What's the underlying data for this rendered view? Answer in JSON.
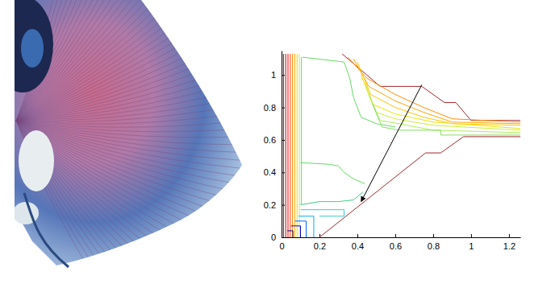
{
  "chart_data": {
    "type": "contour",
    "xlim": [
      0,
      1.26
    ],
    "ylim": [
      0,
      1.15
    ],
    "xticks": [
      0,
      0.2,
      0.4,
      0.6,
      0.8,
      1,
      1.2
    ],
    "yticks": [
      0,
      0.2,
      0.4,
      0.6,
      0.8,
      1
    ],
    "series": [
      {
        "color": "#a0282d",
        "x": [
          0.32,
          0.52,
          0.74,
          0.86,
          0.92,
          1.0,
          1.26
        ],
        "y": [
          1.13,
          0.93,
          0.93,
          0.83,
          0.83,
          0.72,
          0.72
        ]
      },
      {
        "color": "#a0282d",
        "x": [
          0.2,
          0.76,
          0.84,
          0.96,
          1.26
        ],
        "y": [
          0,
          0.52,
          0.52,
          0.62,
          0.62
        ]
      },
      {
        "color": "#7f0000",
        "x": [
          0.01,
          0.01
        ],
        "y": [
          0,
          1.13
        ]
      },
      {
        "color": "#bf0000",
        "x": [
          0.022,
          0.022
        ],
        "y": [
          0,
          1.13
        ]
      },
      {
        "color": "#ff0000",
        "x": [
          0.034,
          0.034
        ],
        "y": [
          0,
          1.13
        ]
      },
      {
        "color": "#ff4000",
        "x": [
          0.046,
          0.046
        ],
        "y": [
          0,
          1.13
        ]
      },
      {
        "color": "#ff8000",
        "x": [
          0.058,
          0.058
        ],
        "y": [
          0,
          1.13
        ]
      },
      {
        "color": "#ffaa00",
        "x": [
          0.07,
          0.07
        ],
        "y": [
          0,
          1.13
        ]
      },
      {
        "color": "#ffd200",
        "x": [
          0.082,
          0.082
        ],
        "y": [
          0,
          1.13
        ]
      },
      {
        "color": "#d4e04a",
        "x": [
          0.094,
          0.094
        ],
        "y": [
          0,
          1.13
        ]
      },
      {
        "color": "#66d966",
        "x": [
          0.105,
          0.105
        ],
        "y": [
          0.2,
          1.11
        ]
      },
      {
        "color": "#66d966",
        "x": [
          0.11,
          0.33,
          0.36,
          0.38,
          0.42,
          0.5,
          0.6
        ],
        "y": [
          1.11,
          1.08,
          0.98,
          0.86,
          0.74,
          0.7,
          0.68
        ]
      },
      {
        "color": "#66d966",
        "x": [
          0.1,
          0.25,
          0.3,
          0.33,
          0.38,
          0.44
        ],
        "y": [
          0.46,
          0.45,
          0.44,
          0.4,
          0.36,
          0.33
        ]
      },
      {
        "color": "#44cc88",
        "x": [
          0.1,
          0.2,
          0.3,
          0.38,
          0.4,
          0.43
        ],
        "y": [
          0.2,
          0.22,
          0.22,
          0.23,
          0.25,
          0.28
        ]
      },
      {
        "color": "#33cccc",
        "x": [
          0.1,
          0.33,
          0.33,
          0.2
        ],
        "y": [
          0.17,
          0.17,
          0.13,
          0.13
        ]
      },
      {
        "color": "#00aaff",
        "x": [
          0.09,
          0.17,
          0.17
        ],
        "y": [
          0.13,
          0.13,
          0
        ]
      },
      {
        "color": "#0066ff",
        "x": [
          0.07,
          0.13,
          0.13
        ],
        "y": [
          0.1,
          0.1,
          0
        ]
      },
      {
        "color": "#0000cc",
        "x": [
          0.05,
          0.1,
          0.1
        ],
        "y": [
          0.07,
          0.07,
          0
        ]
      },
      {
        "color": "#000088",
        "x": [
          0.03,
          0.06,
          0.06
        ],
        "y": [
          0.04,
          0.04,
          0
        ]
      },
      {
        "color": "#ff8c00",
        "x": [
          0.35,
          0.45,
          0.6,
          0.75,
          0.9,
          1.26
        ],
        "y": [
          1.11,
          0.98,
          0.88,
          0.8,
          0.73,
          0.71
        ]
      },
      {
        "color": "#ffa500",
        "x": [
          0.38,
          0.46,
          0.6,
          0.75,
          0.9,
          1.26
        ],
        "y": [
          1.1,
          0.93,
          0.84,
          0.77,
          0.71,
          0.7
        ]
      },
      {
        "color": "#ffc400",
        "x": [
          0.4,
          0.47,
          0.6,
          0.75,
          0.9,
          1.26
        ],
        "y": [
          1.08,
          0.88,
          0.8,
          0.74,
          0.7,
          0.69
        ]
      },
      {
        "color": "#e6e600",
        "x": [
          0.42,
          0.48,
          0.6,
          0.8,
          1.26
        ],
        "y": [
          1.0,
          0.82,
          0.76,
          0.71,
          0.67
        ]
      },
      {
        "color": "#ccee33",
        "x": [
          0.44,
          0.5,
          0.6,
          0.8,
          1.26
        ],
        "y": [
          0.95,
          0.77,
          0.73,
          0.69,
          0.66
        ]
      },
      {
        "color": "#aaee55",
        "x": [
          0.46,
          0.52,
          0.62,
          0.8,
          1.26
        ],
        "y": [
          0.88,
          0.72,
          0.7,
          0.66,
          0.645
        ]
      },
      {
        "color": "#88dd66",
        "x": [
          0.48,
          0.53,
          0.62,
          0.84,
          0.84,
          1.26
        ],
        "y": [
          0.82,
          0.68,
          0.66,
          0.66,
          0.63,
          0.63
        ]
      }
    ],
    "arrow": {
      "x": [
        0.74,
        0.42
      ],
      "y": [
        0.94,
        0.22
      ]
    }
  }
}
